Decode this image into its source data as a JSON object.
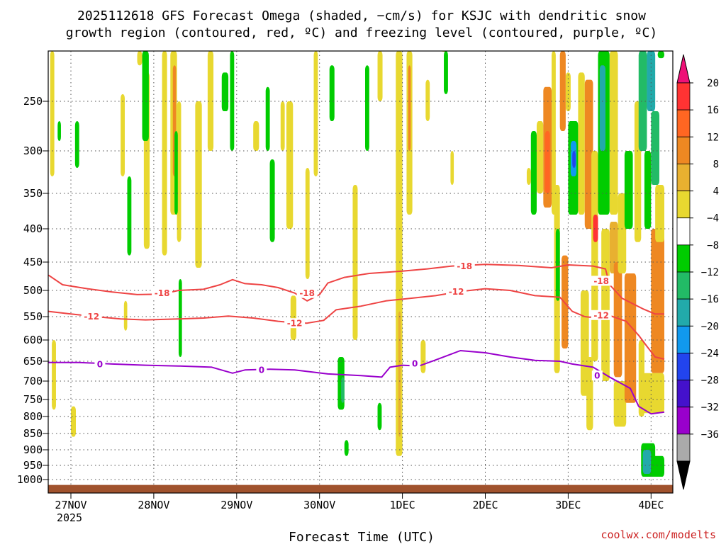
{
  "title_line1": "2025112618 GFS Forecast Omega (shaded, −cm/s) for KSJC with dendritic snow",
  "title_line2": "growth region (contoured, red, ºC) and freezing level (contoured, purple, ºC)",
  "xlabel": "Forecast Time (UTC)",
  "credit": "coolwx.com/modelts",
  "colors": {
    "dsg_line": "#ee4444",
    "freezing_line": "#9900cc",
    "ground": "#a0522d",
    "grid": "#555555"
  },
  "chart_data": {
    "type": "heatmap",
    "title": "2025112618 GFS Forecast Omega (shaded, −cm/s) for KSJC with dendritic snow growth region (contoured, red, ºC) and freezing level (contoured, purple, ºC)",
    "xlabel": "Forecast Time (UTC)",
    "ylabel": "Pressure (hPa)",
    "x_range_days": [
      -0.27,
      7.16
    ],
    "y_axis": {
      "ticks": [
        250,
        300,
        350,
        400,
        450,
        500,
        550,
        600,
        650,
        700,
        750,
        800,
        850,
        900,
        950,
        1000
      ],
      "scale": "pressure"
    },
    "x_ticks": [
      {
        "label": "27NOV",
        "day": 0,
        "sub": "2025"
      },
      {
        "label": "28NOV",
        "day": 1,
        "sub": ""
      },
      {
        "label": "29NOV",
        "day": 2,
        "sub": ""
      },
      {
        "label": "30NOV",
        "day": 3,
        "sub": ""
      },
      {
        "label": "1DEC",
        "day": 4,
        "sub": ""
      },
      {
        "label": "2DEC",
        "day": 5,
        "sub": ""
      },
      {
        "label": "3DEC",
        "day": 6,
        "sub": ""
      },
      {
        "label": "4DEC",
        "day": 7,
        "sub": ""
      }
    ],
    "colorbar": {
      "labels": [
        "20",
        "16",
        "12",
        "8",
        "4",
        "−4",
        "−8",
        "−12",
        "−16",
        "−20",
        "−24",
        "−28",
        "−32",
        "−36"
      ],
      "levels": [
        20,
        16,
        12,
        8,
        4,
        0,
        -4,
        -8,
        -12,
        -16,
        -20,
        -24,
        -28,
        -32,
        -36
      ],
      "colors": [
        "#ff3333",
        "#ff6622",
        "#ee8822",
        "#e8b030",
        "#e8d830",
        "#ffffff",
        "#00cc00",
        "#22bb66",
        "#22aaaa",
        "#1199ee",
        "#2244ee",
        "#4411cc",
        "#9900cc",
        "#aaaaaa"
      ],
      "top_triangle": "#ee1177",
      "bottom_triangle": "#000000"
    },
    "ground_level_hPa": 1012,
    "contours": [
      {
        "name": "-18",
        "color": "#ee4444",
        "label_points": [
          [
            1.1,
            505
          ],
          [
            2.85,
            505
          ],
          [
            4.75,
            457
          ],
          [
            6.4,
            483
          ]
        ],
        "points": [
          [
            -0.27,
            473
          ],
          [
            -0.1,
            490
          ],
          [
            0.2,
            497
          ],
          [
            0.5,
            503
          ],
          [
            0.8,
            508
          ],
          [
            1.1,
            507
          ],
          [
            1.3,
            500
          ],
          [
            1.6,
            498
          ],
          [
            1.8,
            490
          ],
          [
            1.95,
            481
          ],
          [
            2.1,
            488
          ],
          [
            2.3,
            490
          ],
          [
            2.5,
            495
          ],
          [
            2.7,
            505
          ],
          [
            2.85,
            520
          ],
          [
            3.0,
            508
          ],
          [
            3.1,
            487
          ],
          [
            3.3,
            477
          ],
          [
            3.6,
            470
          ],
          [
            4.0,
            466
          ],
          [
            4.3,
            462
          ],
          [
            4.6,
            457
          ],
          [
            5.0,
            454
          ],
          [
            5.4,
            456
          ],
          [
            5.8,
            460
          ],
          [
            6.0,
            455
          ],
          [
            6.3,
            457
          ],
          [
            6.45,
            462
          ],
          [
            6.5,
            490
          ],
          [
            6.65,
            515
          ],
          [
            6.9,
            535
          ],
          [
            7.05,
            545
          ],
          [
            7.16,
            545
          ]
        ]
      },
      {
        "name": "-12",
        "color": "#ee4444",
        "label_points": [
          [
            0.25,
            549
          ],
          [
            2.7,
            564
          ],
          [
            4.65,
            502
          ],
          [
            6.4,
            547
          ]
        ],
        "points": [
          [
            -0.27,
            540
          ],
          [
            0.0,
            545
          ],
          [
            0.3,
            550
          ],
          [
            0.6,
            555
          ],
          [
            0.9,
            557
          ],
          [
            1.3,
            555
          ],
          [
            1.6,
            553
          ],
          [
            1.9,
            549
          ],
          [
            2.2,
            553
          ],
          [
            2.5,
            560
          ],
          [
            2.7,
            563
          ],
          [
            2.85,
            564
          ],
          [
            3.05,
            558
          ],
          [
            3.2,
            537
          ],
          [
            3.5,
            530
          ],
          [
            3.8,
            520
          ],
          [
            4.1,
            515
          ],
          [
            4.4,
            510
          ],
          [
            4.7,
            502
          ],
          [
            5.0,
            497
          ],
          [
            5.3,
            500
          ],
          [
            5.6,
            510
          ],
          [
            5.9,
            513
          ],
          [
            6.05,
            540
          ],
          [
            6.2,
            550
          ],
          [
            6.35,
            553
          ],
          [
            6.5,
            548
          ],
          [
            6.7,
            560
          ],
          [
            6.85,
            590
          ],
          [
            6.95,
            615
          ],
          [
            7.05,
            640
          ],
          [
            7.16,
            645
          ]
        ]
      },
      {
        "name": "0",
        "color": "#9900cc",
        "label_points": [
          [
            0.35,
            657
          ],
          [
            2.3,
            671
          ],
          [
            4.15,
            655
          ],
          [
            6.35,
            686
          ]
        ],
        "points": [
          [
            -0.27,
            653
          ],
          [
            0.1,
            653
          ],
          [
            0.5,
            657
          ],
          [
            0.9,
            660
          ],
          [
            1.3,
            662
          ],
          [
            1.7,
            665
          ],
          [
            1.95,
            680
          ],
          [
            2.1,
            672
          ],
          [
            2.4,
            670
          ],
          [
            2.7,
            672
          ],
          [
            3.1,
            682
          ],
          [
            3.5,
            686
          ],
          [
            3.75,
            690
          ],
          [
            3.85,
            665
          ],
          [
            4.0,
            660
          ],
          [
            4.2,
            662
          ],
          [
            4.4,
            647
          ],
          [
            4.7,
            625
          ],
          [
            5.0,
            630
          ],
          [
            5.3,
            640
          ],
          [
            5.6,
            648
          ],
          [
            5.9,
            650
          ],
          [
            6.05,
            657
          ],
          [
            6.3,
            665
          ],
          [
            6.5,
            690
          ],
          [
            6.75,
            720
          ],
          [
            6.85,
            770
          ],
          [
            7.0,
            792
          ],
          [
            7.16,
            787
          ]
        ]
      }
    ],
    "omega_cells": [
      {
        "x0": -0.25,
        "x1": -0.2,
        "p0": 180,
        "p1": 330,
        "v": 4
      },
      {
        "x0": -0.23,
        "x1": -0.18,
        "p0": 600,
        "p1": 780,
        "v": 4
      },
      {
        "x0": -0.16,
        "x1": -0.12,
        "p0": 270,
        "p1": 290,
        "v": -4
      },
      {
        "x0": 0.05,
        "x1": 0.1,
        "p0": 270,
        "p1": 320,
        "v": -4
      },
      {
        "x0": 0.0,
        "x1": 0.06,
        "p0": 770,
        "p1": 860,
        "v": 4
      },
      {
        "x0": 0.6,
        "x1": 0.65,
        "p0": 240,
        "p1": 330,
        "v": 4
      },
      {
        "x0": 0.68,
        "x1": 0.73,
        "p0": 330,
        "p1": 440,
        "v": -4
      },
      {
        "x0": 0.64,
        "x1": 0.68,
        "p0": 520,
        "p1": 580,
        "v": 4
      },
      {
        "x0": 0.8,
        "x1": 0.86,
        "p0": 120,
        "p1": 200,
        "v": 4
      },
      {
        "x0": 0.88,
        "x1": 0.95,
        "p0": 210,
        "p1": 430,
        "v": 4
      },
      {
        "x0": 0.86,
        "x1": 0.94,
        "p0": 150,
        "p1": 290,
        "v": -4
      },
      {
        "x0": 1.1,
        "x1": 1.16,
        "p0": 170,
        "p1": 440,
        "v": 4
      },
      {
        "x0": 1.2,
        "x1": 1.28,
        "p0": 150,
        "p1": 380,
        "v": 4
      },
      {
        "x0": 1.23,
        "x1": 1.27,
        "p0": 200,
        "p1": 330,
        "v": 12
      },
      {
        "x0": 1.28,
        "x1": 1.33,
        "p0": 250,
        "p1": 420,
        "v": 4
      },
      {
        "x0": 1.25,
        "x1": 1.29,
        "p0": 280,
        "p1": 380,
        "v": -4
      },
      {
        "x0": 1.3,
        "x1": 1.34,
        "p0": 480,
        "p1": 640,
        "v": -4
      },
      {
        "x0": 1.5,
        "x1": 1.58,
        "p0": 250,
        "p1": 460,
        "v": 4
      },
      {
        "x0": 1.65,
        "x1": 1.72,
        "p0": 160,
        "p1": 300,
        "v": 4
      },
      {
        "x0": 1.82,
        "x1": 1.9,
        "p0": 210,
        "p1": 260,
        "v": -4
      },
      {
        "x0": 1.92,
        "x1": 1.97,
        "p0": 100,
        "p1": 300,
        "v": -4
      },
      {
        "x0": 2.2,
        "x1": 2.27,
        "p0": 270,
        "p1": 300,
        "v": 4
      },
      {
        "x0": 2.35,
        "x1": 2.4,
        "p0": 230,
        "p1": 300,
        "v": -4
      },
      {
        "x0": 2.4,
        "x1": 2.46,
        "p0": 310,
        "p1": 420,
        "v": -4
      },
      {
        "x0": 2.53,
        "x1": 2.58,
        "p0": 250,
        "p1": 300,
        "v": 4
      },
      {
        "x0": 2.6,
        "x1": 2.68,
        "p0": 250,
        "p1": 400,
        "v": 4
      },
      {
        "x0": 2.65,
        "x1": 2.72,
        "p0": 510,
        "p1": 600,
        "v": 4
      },
      {
        "x0": 2.83,
        "x1": 2.88,
        "p0": 320,
        "p1": 480,
        "v": 4
      },
      {
        "x0": 2.93,
        "x1": 2.98,
        "p0": 130,
        "p1": 330,
        "v": 4
      },
      {
        "x0": 3.12,
        "x1": 3.18,
        "p0": 200,
        "p1": 270,
        "v": -4
      },
      {
        "x0": 3.22,
        "x1": 3.3,
        "p0": 640,
        "p1": 780,
        "v": -4
      },
      {
        "x0": 3.26,
        "x1": 3.3,
        "p0": 690,
        "p1": 760,
        "v": -8
      },
      {
        "x0": 3.3,
        "x1": 3.35,
        "p0": 870,
        "p1": 920,
        "v": -4
      },
      {
        "x0": 3.4,
        "x1": 3.46,
        "p0": 340,
        "p1": 600,
        "v": 4
      },
      {
        "x0": 3.55,
        "x1": 3.6,
        "p0": 200,
        "p1": 300,
        "v": -4
      },
      {
        "x0": 3.7,
        "x1": 3.75,
        "p0": 760,
        "p1": 840,
        "v": -4
      },
      {
        "x0": 3.7,
        "x1": 3.76,
        "p0": 120,
        "p1": 250,
        "v": 4
      },
      {
        "x0": 3.92,
        "x1": 4.0,
        "p0": 100,
        "p1": 920,
        "v": 4
      },
      {
        "x0": 3.95,
        "x1": 3.98,
        "p0": 540,
        "p1": 860,
        "v": 8
      },
      {
        "x0": 4.05,
        "x1": 4.12,
        "p0": 120,
        "p1": 380,
        "v": 4
      },
      {
        "x0": 4.07,
        "x1": 4.1,
        "p0": 200,
        "p1": 300,
        "v": 12
      },
      {
        "x0": 4.22,
        "x1": 4.28,
        "p0": 600,
        "p1": 680,
        "v": 4
      },
      {
        "x0": 4.28,
        "x1": 4.33,
        "p0": 220,
        "p1": 270,
        "v": 4
      },
      {
        "x0": 4.48,
        "x1": 4.52,
        "p0": 130,
        "p1": 170,
        "v": 4
      },
      {
        "x0": 4.5,
        "x1": 4.55,
        "p0": 180,
        "p1": 240,
        "v": -4
      },
      {
        "x0": 4.58,
        "x1": 4.62,
        "p0": 300,
        "p1": 340,
        "v": 4
      },
      {
        "x0": 5.5,
        "x1": 5.55,
        "p0": 320,
        "p1": 340,
        "v": 4
      },
      {
        "x0": 5.55,
        "x1": 5.62,
        "p0": 280,
        "p1": 380,
        "v": -4
      },
      {
        "x0": 5.62,
        "x1": 5.7,
        "p0": 270,
        "p1": 350,
        "v": 4
      },
      {
        "x0": 5.7,
        "x1": 5.8,
        "p0": 230,
        "p1": 370,
        "v": 12
      },
      {
        "x0": 5.72,
        "x1": 5.78,
        "p0": 280,
        "p1": 350,
        "v": 16
      },
      {
        "x0": 5.8,
        "x1": 5.85,
        "p0": 140,
        "p1": 380,
        "v": 4
      },
      {
        "x0": 5.83,
        "x1": 5.9,
        "p0": 340,
        "p1": 680,
        "v": 4
      },
      {
        "x0": 5.85,
        "x1": 5.9,
        "p0": 400,
        "p1": 520,
        "v": -4
      },
      {
        "x0": 5.9,
        "x1": 5.97,
        "p0": 180,
        "p1": 280,
        "v": 12
      },
      {
        "x0": 5.92,
        "x1": 6.0,
        "p0": 440,
        "p1": 620,
        "v": 12
      },
      {
        "x0": 5.97,
        "x1": 6.03,
        "p0": 210,
        "p1": 260,
        "v": 4
      },
      {
        "x0": 6.0,
        "x1": 6.12,
        "p0": 270,
        "p1": 380,
        "v": -4
      },
      {
        "x0": 6.03,
        "x1": 6.1,
        "p0": 290,
        "p1": 330,
        "v": -16
      },
      {
        "x0": 6.05,
        "x1": 6.09,
        "p0": 300,
        "p1": 320,
        "v": -20
      },
      {
        "x0": 6.12,
        "x1": 6.2,
        "p0": 210,
        "p1": 380,
        "v": 4
      },
      {
        "x0": 6.15,
        "x1": 6.25,
        "p0": 500,
        "p1": 740,
        "v": 4
      },
      {
        "x0": 6.2,
        "x1": 6.3,
        "p0": 220,
        "p1": 400,
        "v": 12
      },
      {
        "x0": 6.22,
        "x1": 6.3,
        "p0": 640,
        "p1": 840,
        "v": 4
      },
      {
        "x0": 6.28,
        "x1": 6.36,
        "p0": 300,
        "p1": 650,
        "v": 4
      },
      {
        "x0": 6.3,
        "x1": 6.36,
        "p0": 380,
        "p1": 420,
        "v": 20
      },
      {
        "x0": 6.36,
        "x1": 6.5,
        "p0": 180,
        "p1": 380,
        "v": -4
      },
      {
        "x0": 6.38,
        "x1": 6.45,
        "p0": 200,
        "p1": 300,
        "v": -12
      },
      {
        "x0": 6.4,
        "x1": 6.5,
        "p0": 400,
        "p1": 700,
        "v": 4
      },
      {
        "x0": 6.5,
        "x1": 6.6,
        "p0": 180,
        "p1": 380,
        "v": 4
      },
      {
        "x0": 6.5,
        "x1": 6.6,
        "p0": 390,
        "p1": 470,
        "v": 8
      },
      {
        "x0": 6.55,
        "x1": 6.65,
        "p0": 450,
        "p1": 690,
        "v": 12
      },
      {
        "x0": 6.55,
        "x1": 6.7,
        "p0": 700,
        "p1": 830,
        "v": 4
      },
      {
        "x0": 6.6,
        "x1": 6.7,
        "p0": 350,
        "p1": 470,
        "v": 4
      },
      {
        "x0": 6.68,
        "x1": 6.78,
        "p0": 300,
        "p1": 400,
        "v": -4
      },
      {
        "x0": 6.68,
        "x1": 6.82,
        "p0": 470,
        "p1": 760,
        "v": 12
      },
      {
        "x0": 6.8,
        "x1": 6.88,
        "p0": 250,
        "p1": 420,
        "v": 4
      },
      {
        "x0": 6.85,
        "x1": 6.95,
        "p0": 180,
        "p1": 300,
        "v": -8
      },
      {
        "x0": 6.85,
        "x1": 6.92,
        "p0": 600,
        "p1": 800,
        "v": 4
      },
      {
        "x0": 6.92,
        "x1": 7.0,
        "p0": 300,
        "p1": 400,
        "v": -4
      },
      {
        "x0": 6.95,
        "x1": 7.05,
        "p0": 180,
        "p1": 260,
        "v": -12
      },
      {
        "x0": 7.0,
        "x1": 7.1,
        "p0": 260,
        "p1": 340,
        "v": -8
      },
      {
        "x0": 7.0,
        "x1": 7.16,
        "p0": 400,
        "p1": 680,
        "v": 12
      },
      {
        "x0": 6.9,
        "x1": 7.16,
        "p0": 680,
        "p1": 790,
        "v": 4
      },
      {
        "x0": 7.05,
        "x1": 7.16,
        "p0": 340,
        "p1": 420,
        "v": 4
      },
      {
        "x0": 6.88,
        "x1": 7.05,
        "p0": 880,
        "p1": 990,
        "v": -4
      },
      {
        "x0": 6.9,
        "x1": 7.0,
        "p0": 900,
        "p1": 980,
        "v": -12
      },
      {
        "x0": 7.0,
        "x1": 7.16,
        "p0": 920,
        "p1": 990,
        "v": -4
      },
      {
        "x0": 7.08,
        "x1": 7.16,
        "p0": 120,
        "p1": 190,
        "v": -4
      }
    ]
  }
}
